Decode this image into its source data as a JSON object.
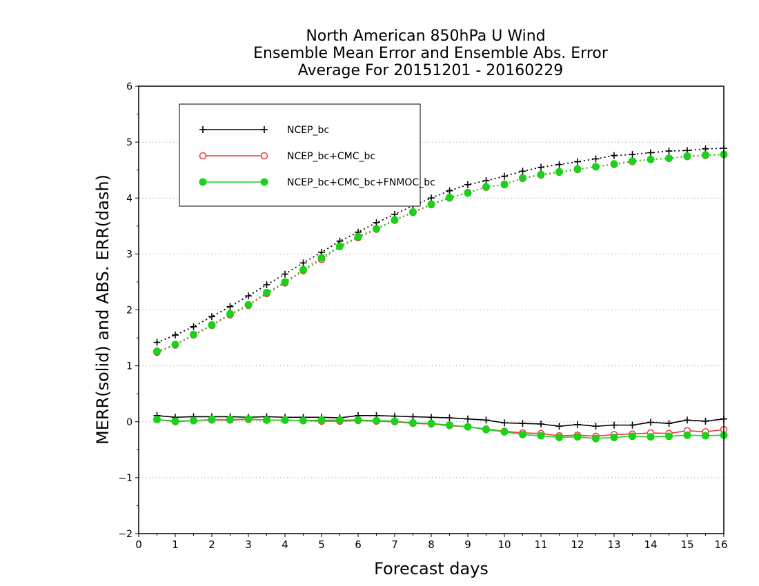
{
  "chart_data": {
    "type": "line",
    "title_lines": [
      "North American 850hPa U Wind",
      "Ensemble Mean Error and Ensemble Abs. Error",
      "Average For 20151201 - 20160229"
    ],
    "xlabel": "Forecast days",
    "ylabel": "MERR(solid) and ABS. ERR(dash)",
    "xlim": [
      0,
      16
    ],
    "ylim": [
      -2,
      6
    ],
    "xticks": [
      "0",
      "1",
      "2",
      "3",
      "4",
      "5",
      "6",
      "7",
      "8",
      "9",
      "10",
      "11",
      "12",
      "13",
      "14",
      "15",
      "16"
    ],
    "yticks": [
      "-2",
      "-1",
      "0",
      "1",
      "2",
      "3",
      "4",
      "5",
      "6"
    ],
    "grid": "horizontal dotted",
    "legend_position": "top-left",
    "x": [
      0.5,
      1,
      1.5,
      2,
      2.5,
      3,
      3.5,
      4,
      4.5,
      5,
      5.5,
      6,
      6.5,
      7,
      7.5,
      8,
      8.5,
      9,
      9.5,
      10,
      10.5,
      11,
      11.5,
      12,
      12.5,
      13,
      13.5,
      14,
      14.5,
      15,
      15.5,
      16
    ],
    "series": [
      {
        "name": "NCEP_bc",
        "color": "#000000",
        "marker": "plus",
        "merr": [
          0.11,
          0.08,
          0.09,
          0.09,
          0.09,
          0.08,
          0.09,
          0.08,
          0.08,
          0.08,
          0.07,
          0.11,
          0.11,
          0.1,
          0.09,
          0.08,
          0.07,
          0.05,
          0.03,
          -0.02,
          -0.03,
          -0.04,
          -0.08,
          -0.05,
          -0.08,
          -0.06,
          -0.06,
          -0.01,
          -0.03,
          0.03,
          0.01,
          0.05
        ],
        "abserr": [
          1.42,
          1.55,
          1.7,
          1.88,
          2.06,
          2.25,
          2.45,
          2.64,
          2.84,
          3.03,
          3.23,
          3.39,
          3.56,
          3.71,
          3.86,
          4.0,
          4.13,
          4.24,
          4.31,
          4.39,
          4.48,
          4.55,
          4.6,
          4.65,
          4.7,
          4.76,
          4.78,
          4.81,
          4.84,
          4.85,
          4.88,
          4.89
        ]
      },
      {
        "name": "NCEP_bc+CMC_bc",
        "color": "#e8383d",
        "marker": "open-circle",
        "merr": [
          0.04,
          0.0,
          0.02,
          0.03,
          0.03,
          0.04,
          0.03,
          0.03,
          0.02,
          0.01,
          0.01,
          0.02,
          0.01,
          0.0,
          -0.03,
          -0.04,
          -0.07,
          -0.09,
          -0.13,
          -0.17,
          -0.2,
          -0.21,
          -0.25,
          -0.24,
          -0.26,
          -0.23,
          -0.22,
          -0.2,
          -0.21,
          -0.16,
          -0.18,
          -0.14
        ],
        "abserr": [
          1.24,
          1.37,
          1.55,
          1.72,
          1.91,
          2.08,
          2.29,
          2.48,
          2.7,
          2.9,
          3.13,
          3.29,
          3.44,
          3.6,
          3.74,
          3.88,
          4.0,
          4.1,
          4.19,
          4.25,
          4.35,
          4.41,
          4.46,
          4.51,
          4.56,
          4.6,
          4.65,
          4.69,
          4.71,
          4.74,
          4.76,
          4.78
        ]
      },
      {
        "name": "NCEP_bc+CMC_bc+FNMOC_bc",
        "color": "#19d219",
        "marker": "filled-circle",
        "merr": [
          0.04,
          0.01,
          0.02,
          0.04,
          0.04,
          0.05,
          0.03,
          0.03,
          0.02,
          0.03,
          0.03,
          0.03,
          0.02,
          0.01,
          -0.02,
          -0.03,
          -0.06,
          -0.09,
          -0.14,
          -0.18,
          -0.23,
          -0.25,
          -0.28,
          -0.27,
          -0.3,
          -0.28,
          -0.26,
          -0.27,
          -0.26,
          -0.24,
          -0.25,
          -0.24
        ],
        "abserr": [
          1.26,
          1.38,
          1.56,
          1.73,
          1.93,
          2.09,
          2.31,
          2.5,
          2.72,
          2.93,
          3.14,
          3.31,
          3.45,
          3.61,
          3.75,
          3.89,
          4.01,
          4.09,
          4.2,
          4.24,
          4.36,
          4.42,
          4.47,
          4.52,
          4.56,
          4.61,
          4.66,
          4.69,
          4.71,
          4.75,
          4.77,
          4.78
        ]
      }
    ]
  }
}
